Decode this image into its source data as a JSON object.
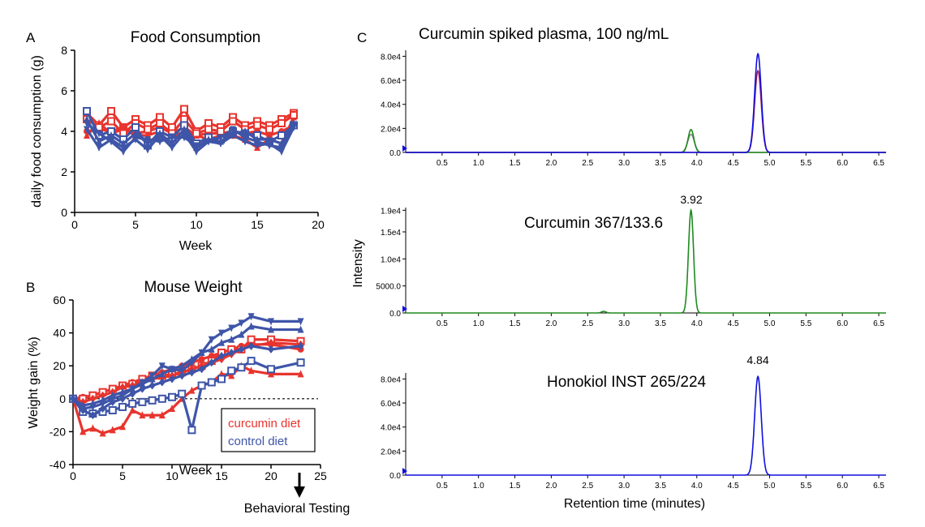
{
  "colors": {
    "curcumin": "#e8342e",
    "control": "#3e55a8",
    "green": "#1f8a1f",
    "blue": "#1010e0",
    "gray": "#888888",
    "purple": "#9a2060"
  },
  "panel_a": {
    "letter": "A",
    "title": "Food Consumption",
    "xlabel": "Week",
    "ylabel": "daily food consumption (g)",
    "x_ticks": [
      0,
      5,
      10,
      15,
      20
    ],
    "y_ticks": [
      0,
      2,
      4,
      6,
      8
    ]
  },
  "panel_b": {
    "letter": "B",
    "title": "Mouse Weight",
    "xlabel": "Week",
    "ylabel": "Weight gain (%)",
    "x_ticks": [
      0,
      5,
      10,
      15,
      20,
      25
    ],
    "y_ticks": [
      -40,
      -20,
      0,
      20,
      40,
      60
    ],
    "legend": [
      "curcumin diet",
      "control diet"
    ],
    "annotation": "Behavioral Testing"
  },
  "panel_c": {
    "letter": "C",
    "title": "Curcumin spiked plasma, 100 ng/mL",
    "ylabel": "Intensity",
    "xlabel": "Retention time (minutes)",
    "x_ticks": [
      "0.5",
      "1.0",
      "1.5",
      "2.0",
      "2.5",
      "3.0",
      "3.5",
      "4.0",
      "4.5",
      "5.0",
      "5.5",
      "6.0",
      "6.5"
    ],
    "top_y_ticks": [
      "0.0",
      "2.0e4",
      "4.0e4",
      "6.0e4",
      "8.0e4"
    ],
    "mid_y_ticks": [
      "0.0",
      "5000.0",
      "1.0e4",
      "1.5e4",
      "1.9e4"
    ],
    "bot_y_ticks": [
      "0.0",
      "2.0e4",
      "4.0e4",
      "6.0e4",
      "8.0e4"
    ],
    "mid_label": "Curcumin 367/133.6",
    "mid_peak": "3.92",
    "bot_label": "Honokiol INST 265/224",
    "bot_peak": "4.84"
  },
  "chart_data": [
    {
      "type": "line",
      "title": "Food Consumption",
      "xlabel": "Week",
      "ylabel": "daily food consumption (g)",
      "xlim": [
        0,
        20
      ],
      "ylim": [
        0,
        8
      ],
      "x": [
        1,
        2,
        3,
        4,
        5,
        6,
        7,
        8,
        9,
        10,
        11,
        12,
        13,
        14,
        15,
        16,
        17,
        18
      ],
      "series": [
        {
          "group": "curcumin",
          "marker": "square",
          "values": [
            4.9,
            4.3,
            5.0,
            4.2,
            4.6,
            4.3,
            4.7,
            4.2,
            5.1,
            4.0,
            4.4,
            4.2,
            4.7,
            4.3,
            4.5,
            4.3,
            4.6,
            4.9
          ]
        },
        {
          "group": "curcumin",
          "marker": "circle",
          "values": [
            4.0,
            4.1,
            4.0,
            4.2,
            3.9,
            4.0,
            4.2,
            3.9,
            4.2,
            3.8,
            3.9,
            3.9,
            4.0,
            3.9,
            4.0,
            3.8,
            4.0,
            4.3
          ]
        },
        {
          "group": "curcumin",
          "marker": "triangle",
          "values": [
            3.8,
            4.4,
            3.9,
            4.1,
            3.8,
            3.8,
            4.0,
            3.7,
            4.0,
            3.8,
            3.6,
            3.8,
            3.8,
            3.6,
            3.2,
            3.6,
            3.4,
            4.7
          ]
        },
        {
          "group": "curcumin",
          "marker": "square",
          "values": [
            4.6,
            4.2,
            4.5,
            3.9,
            4.4,
            4.1,
            4.4,
            3.9,
            4.6,
            3.9,
            4.1,
            4.0,
            4.5,
            4.1,
            4.3,
            4.1,
            4.4,
            4.8
          ]
        },
        {
          "group": "control",
          "marker": "square",
          "values": [
            5.0,
            3.8,
            4.0,
            3.6,
            4.2,
            3.3,
            4.0,
            3.7,
            4.3,
            3.4,
            3.7,
            3.6,
            4.0,
            3.9,
            3.8,
            3.5,
            3.8,
            4.3
          ]
        },
        {
          "group": "control",
          "marker": "invtriangle",
          "values": [
            4.1,
            3.2,
            3.6,
            3.2,
            3.6,
            3.1,
            3.8,
            3.2,
            3.9,
            3.0,
            3.5,
            3.4,
            3.8,
            3.5,
            3.3,
            3.4,
            3.0,
            4.2
          ]
        },
        {
          "group": "control",
          "marker": "triangle",
          "values": [
            4.6,
            3.5,
            3.8,
            3.4,
            3.9,
            3.4,
            3.9,
            3.4,
            4.1,
            3.2,
            3.6,
            3.5,
            3.9,
            4.0,
            3.6,
            3.6,
            3.4,
            4.4
          ]
        },
        {
          "group": "control",
          "marker": "invtriangle",
          "values": [
            4.4,
            3.9,
            3.5,
            3.0,
            3.7,
            3.6,
            3.5,
            3.7,
            3.7,
            3.3,
            3.5,
            3.7,
            4.1,
            3.7,
            3.5,
            3.3,
            3.2,
            4.3
          ]
        }
      ]
    },
    {
      "type": "line",
      "title": "Mouse Weight",
      "xlabel": "Week",
      "ylabel": "Weight gain (%)",
      "xlim": [
        0,
        25
      ],
      "ylim": [
        -40,
        60
      ],
      "reference_line_y": 0,
      "x": [
        0,
        1,
        2,
        3,
        4,
        5,
        6,
        7,
        8,
        9,
        10,
        11,
        12,
        13,
        14,
        15,
        16,
        17,
        18,
        20,
        23
      ],
      "series": [
        {
          "name": "curcumin diet",
          "group": "curcumin",
          "marker": "triangle",
          "values": [
            0,
            -20,
            -18,
            -21,
            -19,
            -17,
            -7,
            -10,
            -10,
            -10,
            -6,
            0,
            5,
            8,
            10,
            15,
            14,
            20,
            17,
            15,
            15
          ]
        },
        {
          "name": "curcumin diet",
          "group": "curcumin",
          "marker": "circle",
          "values": [
            0,
            1,
            2,
            4,
            6,
            8,
            10,
            12,
            14,
            16,
            18,
            20,
            22,
            24,
            26,
            28,
            30,
            32,
            33,
            33,
            30
          ]
        },
        {
          "name": "curcumin diet",
          "group": "curcumin",
          "marker": "square",
          "values": [
            0,
            0,
            2,
            4,
            6,
            8,
            9,
            12,
            14,
            14,
            15,
            16,
            18,
            20,
            23,
            28,
            30,
            30,
            36,
            36,
            35
          ]
        },
        {
          "name": "curcumin diet",
          "group": "curcumin",
          "marker": "diamond",
          "values": [
            0,
            -2,
            0,
            2,
            4,
            7,
            8,
            10,
            12,
            13,
            14,
            16,
            18,
            20,
            22,
            24,
            27,
            30,
            32,
            34,
            33
          ]
        },
        {
          "name": "control diet",
          "group": "control",
          "marker": "invtriangle",
          "values": [
            0,
            -6,
            -5,
            -3,
            0,
            2,
            6,
            10,
            14,
            20,
            18,
            17,
            22,
            28,
            36,
            40,
            43,
            46,
            50,
            47,
            47
          ]
        },
        {
          "name": "control diet",
          "group": "control",
          "marker": "triangle",
          "values": [
            0,
            -4,
            -3,
            -1,
            2,
            4,
            6,
            9,
            12,
            15,
            18,
            20,
            24,
            28,
            30,
            34,
            36,
            39,
            44,
            42,
            42
          ]
        },
        {
          "name": "control diet",
          "group": "control",
          "marker": "square",
          "values": [
            0,
            -8,
            -9,
            -8,
            -7,
            -5,
            -3,
            -2,
            -1,
            0,
            1,
            3,
            -19,
            8,
            10,
            12,
            17,
            19,
            23,
            18,
            22
          ]
        },
        {
          "name": "control diet",
          "group": "control",
          "marker": "diamond",
          "values": [
            0,
            -7,
            -10,
            -6,
            -2,
            0,
            3,
            6,
            8,
            10,
            12,
            14,
            16,
            18,
            22,
            26,
            28,
            30,
            32,
            30,
            32
          ]
        }
      ]
    },
    {
      "type": "line",
      "title": "Curcumin spiked plasma, 100 ng/mL",
      "xlabel": "Retention time (minutes)",
      "ylabel": "Intensity",
      "xlim": [
        0,
        6.6
      ],
      "ylim": [
        0,
        85000
      ],
      "series": [
        {
          "color": "blue",
          "peak_time": 4.84,
          "peak_intensity": 82000
        },
        {
          "color": "purple",
          "peak_time": 4.84,
          "peak_intensity": 68000
        },
        {
          "color": "green",
          "peak_time": 3.92,
          "peak_intensity": 19000
        },
        {
          "color": "gray",
          "peak_time": 3.92,
          "peak_intensity": 15000
        }
      ]
    },
    {
      "type": "line",
      "title": "Curcumin 367/133.6",
      "xlabel": "Retention time (minutes)",
      "ylabel": "Intensity",
      "xlim": [
        0,
        6.6
      ],
      "ylim": [
        0,
        19500
      ],
      "peak_label": "3.92",
      "series": [
        {
          "color": "green",
          "peak_time": 3.92,
          "peak_intensity": 19000,
          "minor_peak_time": 2.72,
          "minor_peak_intensity": 300
        }
      ]
    },
    {
      "type": "line",
      "title": "Honokiol INST 265/224",
      "xlabel": "Retention time (minutes)",
      "ylabel": "Intensity",
      "xlim": [
        0,
        6.6
      ],
      "ylim": [
        0,
        85000
      ],
      "peak_label": "4.84",
      "series": [
        {
          "color": "blue",
          "peak_time": 4.84,
          "peak_intensity": 82000
        }
      ]
    }
  ]
}
